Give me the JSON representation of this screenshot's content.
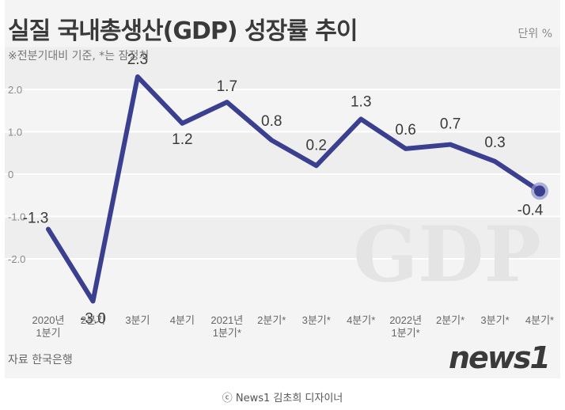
{
  "header": {
    "title": "실질 국내총생산(GDP) 성장률 추이",
    "unit": "단위 %",
    "subtitle": "※전분기대비 기준, *는 잠정치"
  },
  "footer": {
    "source": "자료 한국은행",
    "logo": "news1",
    "credit": "ⓒ News1 김초희 디자이너"
  },
  "watermark": "GDP",
  "colors": {
    "line": "#3b3f8f",
    "grid": "#ffffff",
    "text": "#3a3a3a"
  },
  "chart_data": {
    "type": "line",
    "title": "실질 국내총생산(GDP) 성장률 추이",
    "categories": [
      "2020년\n1분기",
      "2분기",
      "3분기",
      "4분기",
      "2021년\n1분기*",
      "2분기*",
      "3분기*",
      "4분기*",
      "2022년\n1분기*",
      "2분기*",
      "3분기*",
      "4분기*"
    ],
    "series": [
      {
        "values": [
          -1.3,
          -3.0,
          2.3,
          1.2,
          1.7,
          0.8,
          0.2,
          1.3,
          0.6,
          0.7,
          0.3,
          -0.4
        ]
      }
    ],
    "data_labels": [
      "-1.3",
      "-3.0",
      "2.3",
      "1.2",
      "1.7",
      "0.8",
      "0.2",
      "1.3",
      "0.6",
      "0.7",
      "0.3",
      "-0.4"
    ],
    "yticks": [
      "2.0",
      "1.0",
      "0",
      "-1.0",
      "-2.0"
    ],
    "ytick_values": [
      2.0,
      1.0,
      0,
      -1.0,
      -2.0
    ],
    "ylim": [
      -3.3,
      2.6
    ],
    "grid": true,
    "highlight_last_point": true
  }
}
